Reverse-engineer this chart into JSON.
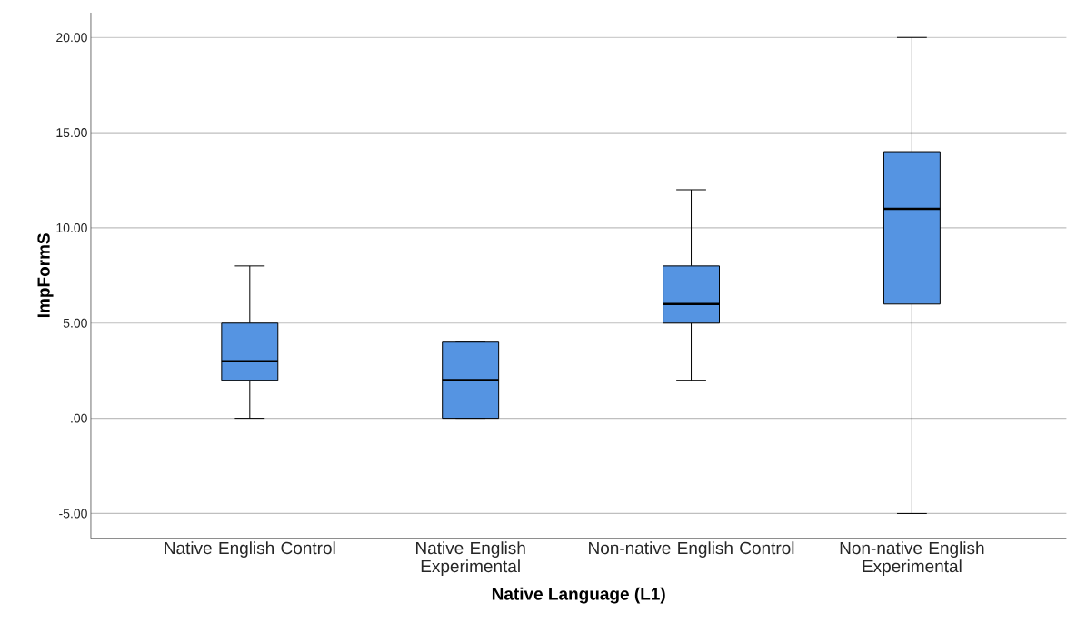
{
  "chart_data": {
    "type": "box",
    "xlabel": "Native Language (L1)",
    "ylabel": "ImpFormS",
    "categories": [
      "Native English Control",
      "Native English Experimental",
      "Non-native English Control",
      "Non-native English Experimental"
    ],
    "boxes": [
      {
        "low": 0,
        "q1": 2,
        "median": 3,
        "q3": 5,
        "high": 8
      },
      {
        "low": 0,
        "q1": 0,
        "median": 2,
        "q3": 4,
        "high": 4
      },
      {
        "low": 2,
        "q1": 5,
        "median": 6,
        "q3": 8,
        "high": 12
      },
      {
        "low": -5,
        "q1": 6,
        "median": 11,
        "q3": 14,
        "high": 20
      }
    ],
    "color": "#5594e2",
    "ylim": [
      -6.3,
      21.3
    ],
    "yticks": [
      {
        "value": -5,
        "label": "-5.00"
      },
      {
        "value": 0,
        "label": ".00"
      },
      {
        "value": 5,
        "label": "5.00"
      },
      {
        "value": 10,
        "label": "10.00"
      },
      {
        "value": 15,
        "label": "15.00"
      },
      {
        "value": 20,
        "label": "20.00"
      }
    ],
    "grid": "y"
  }
}
